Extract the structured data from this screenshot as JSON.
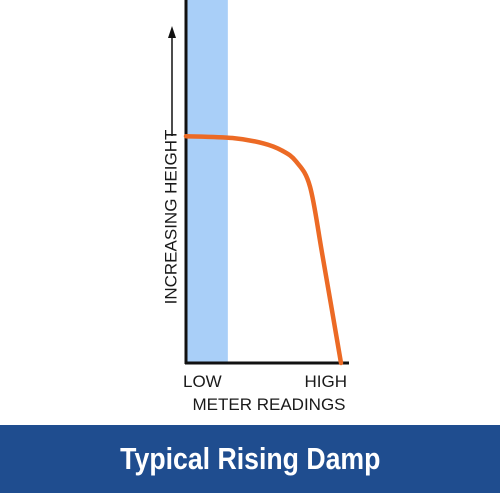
{
  "banner": {
    "title": "Typical Rising Damp",
    "background": "#1f4d8f"
  },
  "chart_data": {
    "type": "line",
    "ylabel": "INCREASING HEIGHT",
    "xlabel": "METER READINGS",
    "x_tick_labels": [
      "LOW",
      "HIGH"
    ],
    "grid": false,
    "line_color": "#ec6a25",
    "band_color": "#a9cff8",
    "band_x_range": [
      0.0,
      0.27
    ],
    "xlim": [
      0,
      1
    ],
    "ylim": [
      0,
      1
    ],
    "series": [
      {
        "x": [
          0.0,
          0.3,
          0.5,
          0.62,
          0.71,
          0.8,
          0.88,
          1.0
        ],
        "y": [
          0.63,
          0.625,
          0.61,
          0.59,
          0.56,
          0.49,
          0.3,
          0.0
        ]
      }
    ]
  }
}
